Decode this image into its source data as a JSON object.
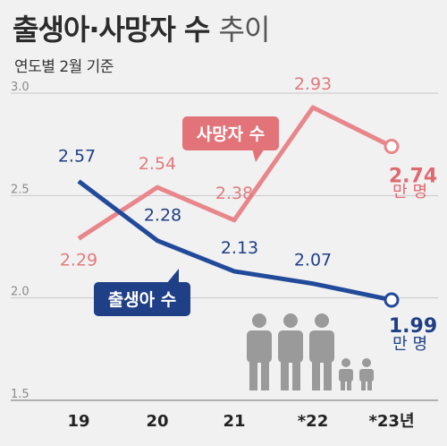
{
  "header": {
    "title_bold": "출생아·사망자 수",
    "title_light": "추이",
    "subtitle": "연도별 2월 기준"
  },
  "chart_data": {
    "type": "line",
    "title": "출생아·사망자 수 추이",
    "subtitle": "연도별 2월 기준",
    "categories": [
      "19",
      "20",
      "21",
      "*22",
      "*23년"
    ],
    "ylim": [
      1.5,
      3.0
    ],
    "yticks": [
      "3.0",
      "2.5",
      "2.0",
      "1.5"
    ],
    "unit": "만 명",
    "series": [
      {
        "name": "사망자 수",
        "color": "#e8868b",
        "values": [
          2.29,
          2.54,
          2.38,
          2.93,
          2.74
        ],
        "labels": [
          "2.29",
          "2.54",
          "2.38",
          "2.93",
          "2.74"
        ]
      },
      {
        "name": "출생아 수",
        "color": "#224a9a",
        "values": [
          2.57,
          2.28,
          2.13,
          2.07,
          1.99
        ],
        "labels": [
          "2.57",
          "2.28",
          "2.13",
          "2.07",
          "1.99"
        ]
      }
    ],
    "end_unit": "만 명",
    "icon": "family-people-icon"
  }
}
